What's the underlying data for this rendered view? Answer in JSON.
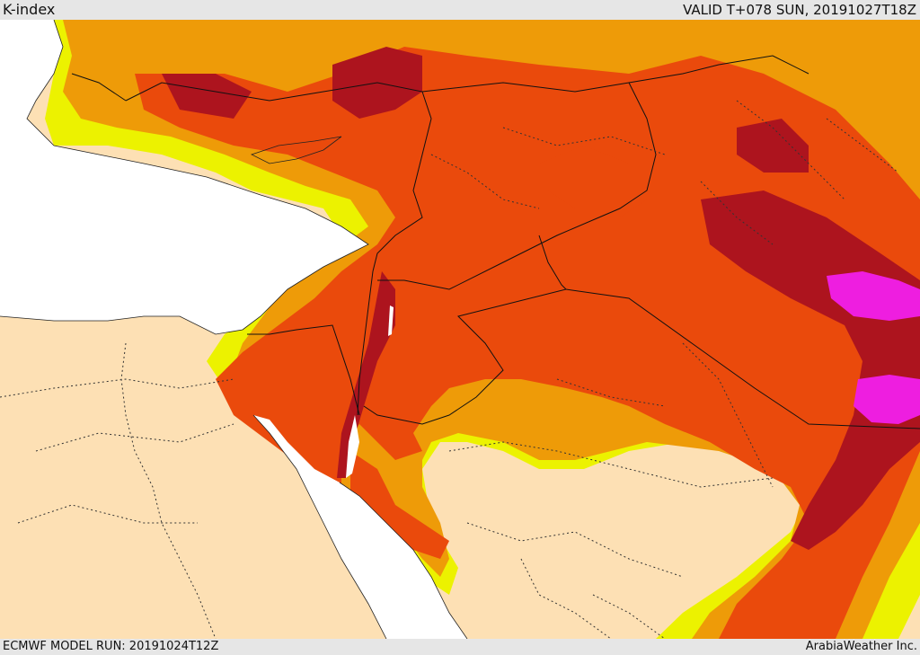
{
  "header": {
    "title": "K-index",
    "valid_time": "VALID T+078 SUN, 20191027T18Z"
  },
  "footer": {
    "model_run": "ECMWF MODEL RUN: 20191024T12Z",
    "credit": "ArabiaWeather Inc."
  },
  "map": {
    "palette": {
      "land_base": "#fde0b4",
      "sea": "#ffffff",
      "band_1": "#ecf200",
      "band_2": "#ee9b08",
      "band_3": "#ea4a0c",
      "band_4": "#ad141e",
      "band_5": "#ee1ee0"
    },
    "borders": "national borders (solid) and provincial boundaries (dotted)"
  }
}
